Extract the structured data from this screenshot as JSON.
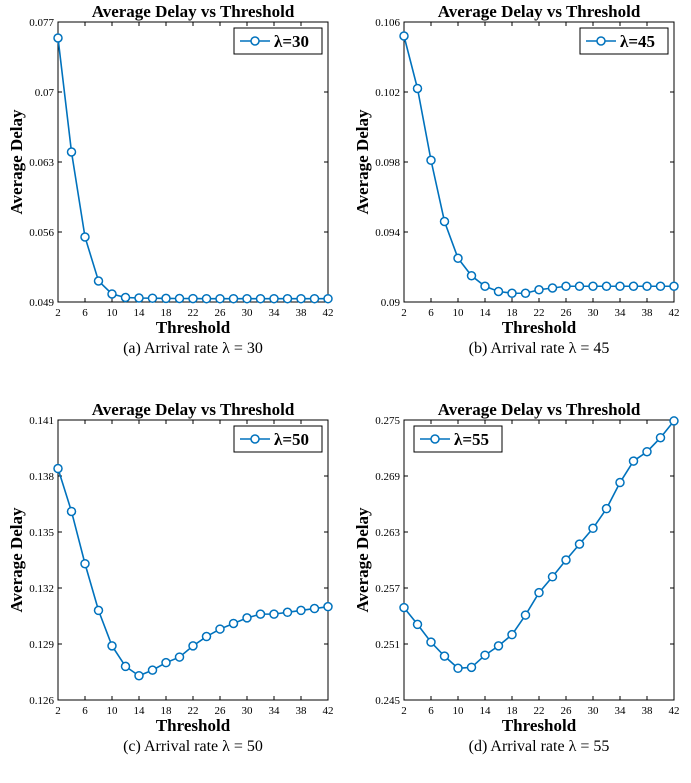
{
  "chart_data": [
    {
      "type": "line",
      "title": "Average Delay vs Threshold",
      "xlabel": "Threshold",
      "ylabel": "Average Delay",
      "x": [
        2,
        4,
        6,
        8,
        10,
        12,
        14,
        16,
        18,
        20,
        22,
        24,
        26,
        28,
        30,
        32,
        34,
        36,
        38,
        40,
        42
      ],
      "xlim": [
        2,
        42
      ],
      "ylim": [
        0.049,
        0.077
      ],
      "yticks": [
        "0.049",
        "0.056",
        "0.063",
        "0.07",
        "0.077"
      ],
      "xticks": [
        "2",
        "6",
        "10",
        "14",
        "18",
        "22",
        "26",
        "30",
        "34",
        "38",
        "42"
      ],
      "series": [
        {
          "name": "λ=30",
          "values": [
            0.0754,
            0.064,
            0.0555,
            0.0511,
            0.0498,
            0.04945,
            0.0494,
            0.04938,
            0.04936,
            0.04935,
            0.04934,
            0.04933,
            0.04933,
            0.04933,
            0.04933,
            0.04933,
            0.04933,
            0.04933,
            0.04933,
            0.04933,
            0.04933
          ]
        }
      ],
      "legend": "top-right",
      "grid": false,
      "caption": "(a) Arrival rate λ = 30"
    },
    {
      "type": "line",
      "title": "Average Delay vs Threshold",
      "xlabel": "Threshold",
      "ylabel": "Average Delay",
      "x": [
        2,
        4,
        6,
        8,
        10,
        12,
        14,
        16,
        18,
        20,
        22,
        24,
        26,
        28,
        30,
        32,
        34,
        36,
        38,
        40,
        42
      ],
      "xlim": [
        2,
        42
      ],
      "ylim": [
        0.09,
        0.106
      ],
      "yticks": [
        "0.09",
        "0.094",
        "0.098",
        "0.102",
        "0.106"
      ],
      "xticks": [
        "2",
        "6",
        "10",
        "14",
        "18",
        "22",
        "26",
        "30",
        "34",
        "38",
        "42"
      ],
      "series": [
        {
          "name": "λ=45",
          "values": [
            0.1052,
            0.1022,
            0.0981,
            0.0946,
            0.0925,
            0.0915,
            0.0909,
            0.0906,
            0.0905,
            0.0905,
            0.0907,
            0.0908,
            0.0909,
            0.0909,
            0.0909,
            0.0909,
            0.0909,
            0.0909,
            0.0909,
            0.0909,
            0.0909
          ]
        }
      ],
      "legend": "top-right",
      "grid": false,
      "caption": "(b) Arrival rate λ = 45"
    },
    {
      "type": "line",
      "title": "Average Delay vs Threshold",
      "xlabel": "Threshold",
      "ylabel": "Average Delay",
      "x": [
        2,
        4,
        6,
        8,
        10,
        12,
        14,
        16,
        18,
        20,
        22,
        24,
        26,
        28,
        30,
        32,
        34,
        36,
        38,
        40,
        42
      ],
      "xlim": [
        2,
        42
      ],
      "ylim": [
        0.126,
        0.141
      ],
      "yticks": [
        "0.126",
        "0.129",
        "0.132",
        "0.135",
        "0.138",
        "0.141"
      ],
      "xticks": [
        "2",
        "6",
        "10",
        "14",
        "18",
        "22",
        "26",
        "30",
        "34",
        "38",
        "42"
      ],
      "series": [
        {
          "name": "λ=50",
          "values": [
            0.1384,
            0.1361,
            0.1333,
            0.1308,
            0.1289,
            0.1278,
            0.1273,
            0.1276,
            0.128,
            0.1283,
            0.1289,
            0.1294,
            0.1298,
            0.1301,
            0.1304,
            0.1306,
            0.1306,
            0.1307,
            0.1308,
            0.1309,
            0.131
          ]
        }
      ],
      "legend": "top-right",
      "grid": false,
      "caption": "(c) Arrival rate λ = 50"
    },
    {
      "type": "line",
      "title": "Average Delay vs Threshold",
      "xlabel": "Threshold",
      "ylabel": "Average Delay",
      "x": [
        2,
        4,
        6,
        8,
        10,
        12,
        14,
        16,
        18,
        20,
        22,
        24,
        26,
        28,
        30,
        32,
        34,
        36,
        38,
        40,
        42
      ],
      "xlim": [
        2,
        42
      ],
      "ylim": [
        0.245,
        0.275
      ],
      "yticks": [
        "0.245",
        "0.251",
        "0.257",
        "0.263",
        "0.269",
        "0.275"
      ],
      "xticks": [
        "2",
        "6",
        "10",
        "14",
        "18",
        "22",
        "26",
        "30",
        "34",
        "38",
        "42"
      ],
      "series": [
        {
          "name": "λ=55",
          "values": [
            0.2549,
            0.2531,
            0.2512,
            0.2497,
            0.2484,
            0.2485,
            0.2498,
            0.2508,
            0.252,
            0.2541,
            0.2565,
            0.2582,
            0.26,
            0.2617,
            0.2634,
            0.2655,
            0.2683,
            0.2706,
            0.2716,
            0.2731,
            0.2749
          ]
        }
      ],
      "legend": "top-left",
      "grid": false,
      "caption": "(d) Arrival rate λ = 55"
    }
  ],
  "colors": {
    "line": "#0072BD",
    "marker_fill": "#ffffff",
    "axis": "#000000"
  }
}
